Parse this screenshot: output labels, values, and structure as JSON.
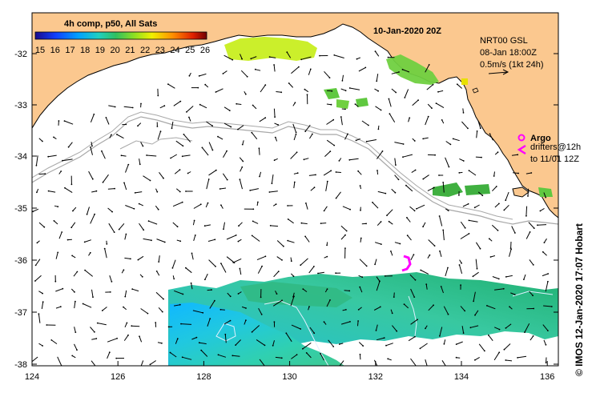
{
  "title": "10-Jan-2020 20Z",
  "colorbar": {
    "title": "4h comp, p50, All Sats",
    "ticks": [
      "15",
      "16",
      "17",
      "18",
      "19",
      "20",
      "21",
      "22",
      "23",
      "24",
      "25",
      "26"
    ],
    "min": 15,
    "max": 26
  },
  "currents": {
    "line1": "NRT00 GSL",
    "line2": "08-Jan 18:00Z",
    "line3": "0.5m/s (1kt 24h)"
  },
  "argo": {
    "label": "Argo",
    "drifters_line1": "drifters@12h",
    "drifters_line2": "to 11/01 12Z"
  },
  "credit": "© IMOS 12-Jan-2020 17:07 Hobart",
  "axes": {
    "x_ticks": [
      "124",
      "126",
      "128",
      "130",
      "132",
      "134",
      "136"
    ],
    "y_ticks": [
      "-32",
      "-33",
      "-34",
      "-35",
      "-36",
      "-37",
      "-38"
    ],
    "lon_range": [
      124,
      136.5
    ],
    "lat_range": [
      -38.1,
      -31.3
    ]
  },
  "colors": {
    "land": "#fbc88f",
    "coast": "#000000",
    "isobath": "#a8a8a8",
    "argo": "#ff00ff"
  }
}
